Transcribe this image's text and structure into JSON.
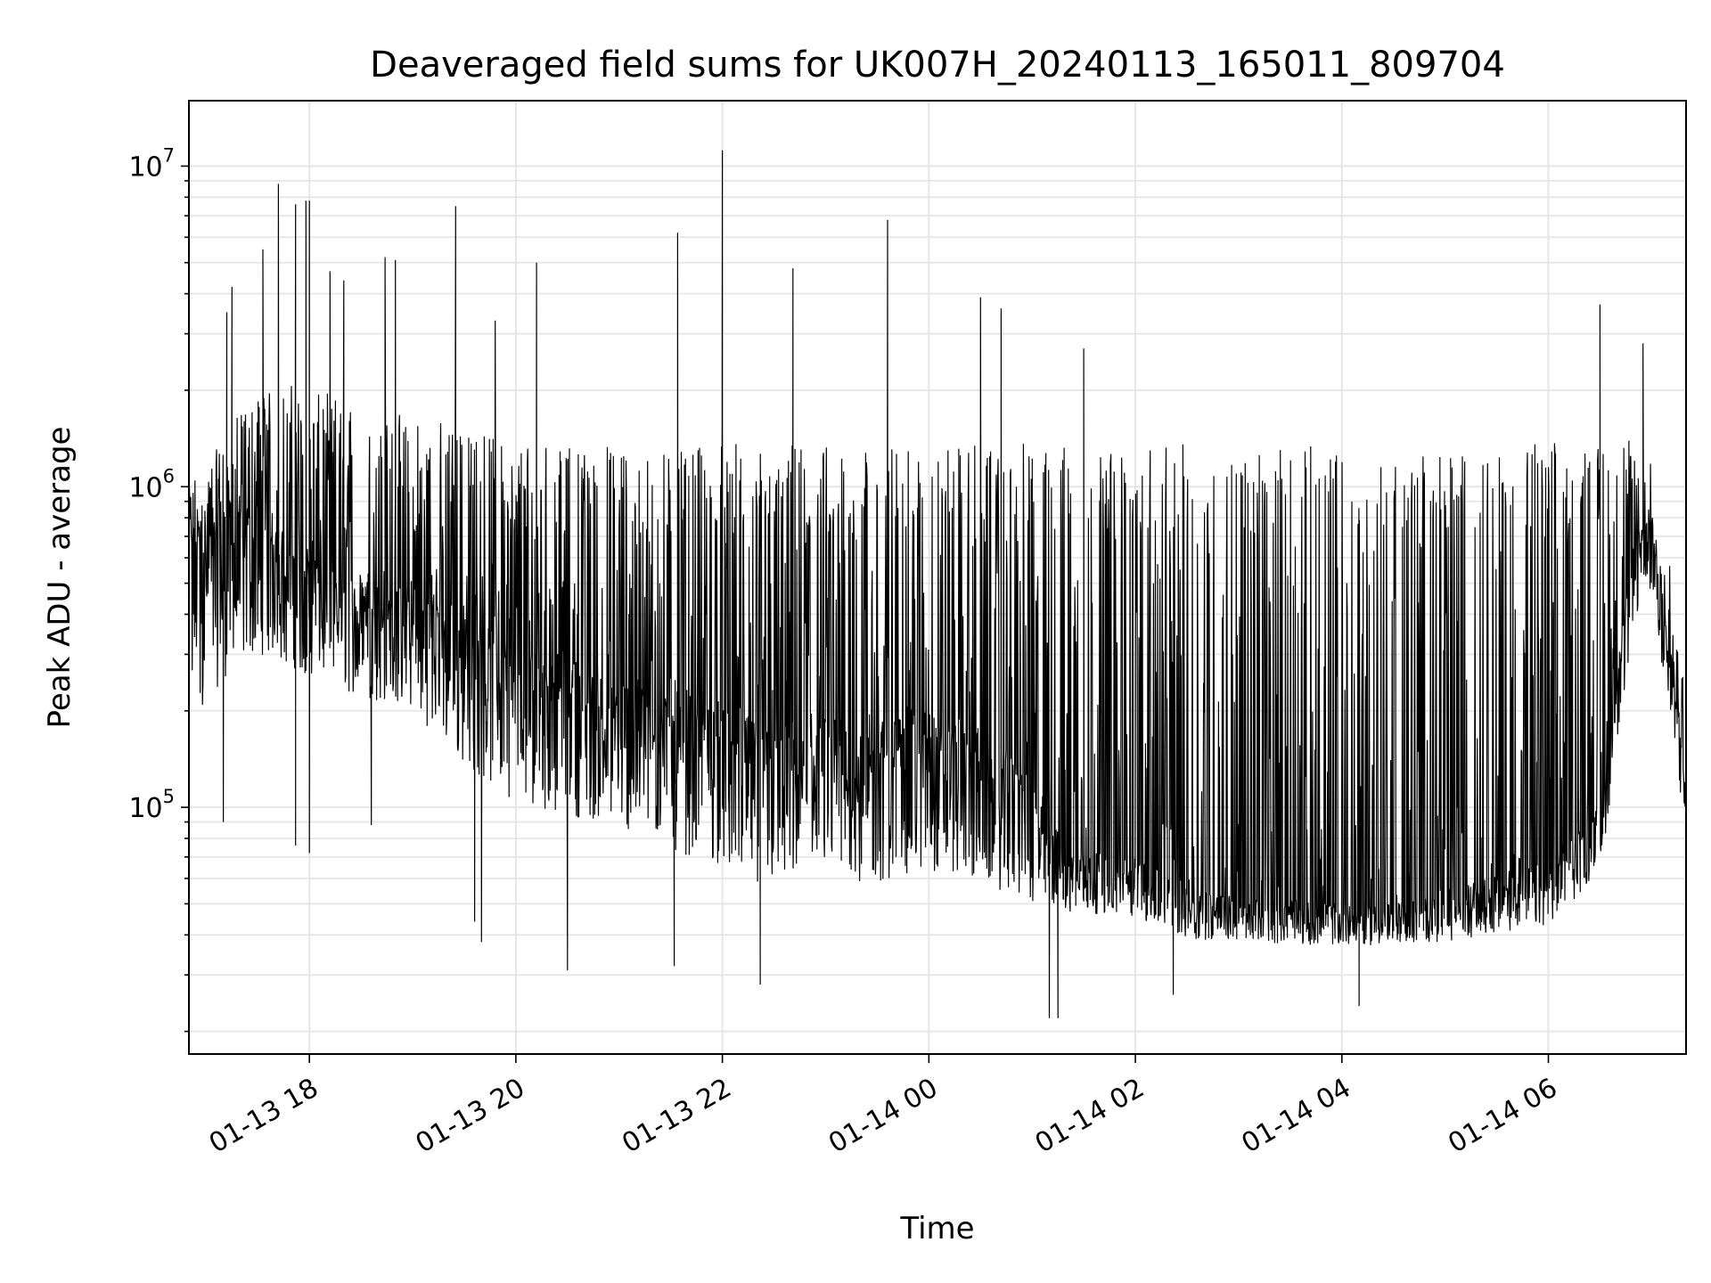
{
  "chart_data": {
    "type": "line",
    "title": "Deaveraged field sums for UK007H_20240113_165011_809704",
    "xlabel": "Time",
    "ylabel": "Peak ADU - average",
    "x_range": [
      "2024-01-13 16:50",
      "2024-01-14 07:20"
    ],
    "x_tick_labels": [
      {
        "t": "2024-01-13 18:00",
        "label": "01-13 18"
      },
      {
        "t": "2024-01-13 20:00",
        "label": "01-13 20"
      },
      {
        "t": "2024-01-13 22:00",
        "label": "01-13 22"
      },
      {
        "t": "2024-01-14 00:00",
        "label": "01-14 00"
      },
      {
        "t": "2024-01-14 02:00",
        "label": "01-14 02"
      },
      {
        "t": "2024-01-14 04:00",
        "label": "01-14 04"
      },
      {
        "t": "2024-01-14 06:00",
        "label": "01-14 06"
      }
    ],
    "y_scale": "log",
    "y_range": [
      17000,
      16000000
    ],
    "y_tick_labels": [
      {
        "value": 100000,
        "base": "10",
        "exp": "5"
      },
      {
        "value": 1000000,
        "base": "10",
        "exp": "6"
      },
      {
        "value": 10000000,
        "base": "10",
        "exp": "7"
      }
    ],
    "grid": true,
    "line_color": "#000000",
    "grid_color": "#e6e6e6",
    "series": [
      {
        "envelope": [
          {
            "t": "2024-01-13 16:50",
            "low": 90000,
            "median": 600000,
            "high": 1000000
          },
          {
            "t": "2024-01-13 17:10",
            "low": 150000,
            "median": 650000,
            "high": 1400000
          },
          {
            "t": "2024-01-13 17:30",
            "low": 200000,
            "median": 650000,
            "high": 2000000
          },
          {
            "t": "2024-01-13 18:00",
            "low": 180000,
            "median": 500000,
            "high": 2000000
          },
          {
            "t": "2024-01-13 18:30",
            "low": 150000,
            "median": 420000,
            "high": 1700000
          },
          {
            "t": "2024-01-13 19:00",
            "low": 140000,
            "median": 400000,
            "high": 1600000
          },
          {
            "t": "2024-01-13 19:30",
            "low": 80000,
            "median": 330000,
            "high": 1500000
          },
          {
            "t": "2024-01-13 20:00",
            "low": 65000,
            "median": 250000,
            "high": 1400000
          },
          {
            "t": "2024-01-13 20:30",
            "low": 60000,
            "median": 220000,
            "high": 1300000
          },
          {
            "t": "2024-01-13 21:00",
            "low": 55000,
            "median": 200000,
            "high": 1300000
          },
          {
            "t": "2024-01-13 21:30",
            "low": 45000,
            "median": 180000,
            "high": 1300000
          },
          {
            "t": "2024-01-13 22:00",
            "low": 42000,
            "median": 150000,
            "high": 1300000
          },
          {
            "t": "2024-01-13 22:30",
            "low": 35000,
            "median": 130000,
            "high": 1300000
          },
          {
            "t": "2024-01-13 23:00",
            "low": 38000,
            "median": 140000,
            "high": 1300000
          },
          {
            "t": "2024-01-13 23:30",
            "low": 36000,
            "median": 140000,
            "high": 1300000
          },
          {
            "t": "2024-01-14 00:00",
            "low": 40000,
            "median": 150000,
            "high": 1300000
          },
          {
            "t": "2024-01-14 00:30",
            "low": 38000,
            "median": 130000,
            "high": 1300000
          },
          {
            "t": "2024-01-14 01:00",
            "low": 34000,
            "median": 100000,
            "high": 1300000
          },
          {
            "t": "2024-01-14 01:20",
            "low": 40000,
            "median": 65000,
            "high": 1300000
          },
          {
            "t": "2024-01-14 02:00",
            "low": 38000,
            "median": 62000,
            "high": 1300000
          },
          {
            "t": "2024-01-14 02:30",
            "low": 33000,
            "median": 52000,
            "high": 1300000
          },
          {
            "t": "2024-01-14 03:00",
            "low": 34000,
            "median": 48000,
            "high": 1300000
          },
          {
            "t": "2024-01-14 03:30",
            "low": 33000,
            "median": 47000,
            "high": 1300000
          },
          {
            "t": "2024-01-14 04:00",
            "low": 33000,
            "median": 46000,
            "high": 1300000
          },
          {
            "t": "2024-01-14 04:30",
            "low": 33000,
            "median": 46000,
            "high": 1300000
          },
          {
            "t": "2024-01-14 05:00",
            "low": 33000,
            "median": 50000,
            "high": 1300000
          },
          {
            "t": "2024-01-14 05:30",
            "low": 34000,
            "median": 55000,
            "high": 1300000
          },
          {
            "t": "2024-01-14 06:00",
            "low": 36000,
            "median": 60000,
            "high": 1300000
          },
          {
            "t": "2024-01-14 06:30",
            "low": 50000,
            "median": 90000,
            "high": 1400000
          },
          {
            "t": "2024-01-14 06:50",
            "low": 300000,
            "median": 600000,
            "high": 1400000
          },
          {
            "t": "2024-01-14 07:00",
            "low": 400000,
            "median": 700000,
            "high": 1200000
          },
          {
            "t": "2024-01-14 07:10",
            "low": 150000,
            "median": 300000,
            "high": 600000
          },
          {
            "t": "2024-01-14 07:20",
            "low": 70000,
            "median": 110000,
            "high": 200000
          }
        ],
        "spikes": [
          {
            "t": "2024-01-13 17:12",
            "value": 3500000
          },
          {
            "t": "2024-01-13 17:15",
            "value": 4200000
          },
          {
            "t": "2024-01-13 17:33",
            "value": 5500000
          },
          {
            "t": "2024-01-13 17:42",
            "value": 8800000
          },
          {
            "t": "2024-01-13 17:52",
            "value": 7600000
          },
          {
            "t": "2024-01-13 17:58",
            "value": 7800000
          },
          {
            "t": "2024-01-13 18:00",
            "value": 7800000
          },
          {
            "t": "2024-01-13 18:12",
            "value": 4700000
          },
          {
            "t": "2024-01-13 18:20",
            "value": 4400000
          },
          {
            "t": "2024-01-13 18:44",
            "value": 5200000
          },
          {
            "t": "2024-01-13 18:50",
            "value": 5100000
          },
          {
            "t": "2024-01-13 19:25",
            "value": 7500000
          },
          {
            "t": "2024-01-13 19:48",
            "value": 3300000
          },
          {
            "t": "2024-01-13 20:12",
            "value": 5000000
          },
          {
            "t": "2024-01-13 21:34",
            "value": 6200000
          },
          {
            "t": "2024-01-13 22:00",
            "value": 11200000
          },
          {
            "t": "2024-01-13 22:41",
            "value": 4800000
          },
          {
            "t": "2024-01-13 23:36",
            "value": 6800000
          },
          {
            "t": "2024-01-14 00:30",
            "value": 3900000
          },
          {
            "t": "2024-01-14 00:42",
            "value": 3600000
          },
          {
            "t": "2024-01-14 01:30",
            "value": 2700000
          },
          {
            "t": "2024-01-14 06:30",
            "value": 3700000
          },
          {
            "t": "2024-01-14 06:55",
            "value": 2800000
          }
        ],
        "dips": [
          {
            "t": "2024-01-13 17:10",
            "value": 90000
          },
          {
            "t": "2024-01-13 17:52",
            "value": 76000
          },
          {
            "t": "2024-01-13 18:00",
            "value": 72000
          },
          {
            "t": "2024-01-13 18:36",
            "value": 88000
          },
          {
            "t": "2024-01-13 19:36",
            "value": 44000
          },
          {
            "t": "2024-01-13 19:40",
            "value": 38000
          },
          {
            "t": "2024-01-13 20:30",
            "value": 31000
          },
          {
            "t": "2024-01-13 21:32",
            "value": 32000
          },
          {
            "t": "2024-01-13 22:22",
            "value": 28000
          },
          {
            "t": "2024-01-14 01:10",
            "value": 22000
          },
          {
            "t": "2024-01-14 01:15",
            "value": 22000
          },
          {
            "t": "2024-01-14 02:22",
            "value": 26000
          },
          {
            "t": "2024-01-14 04:10",
            "value": 24000
          }
        ]
      }
    ]
  }
}
